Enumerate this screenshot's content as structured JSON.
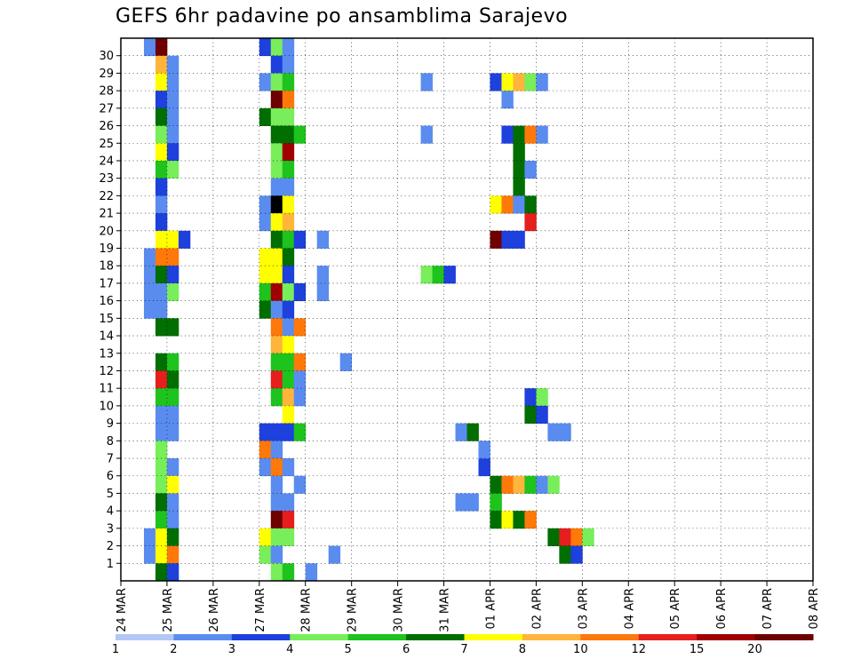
{
  "chart_data": {
    "type": "heatmap",
    "title": "GEFS 6hr padavine po ansamblima Sarajevo",
    "x_tick_labels": [
      "24 MAR",
      "25 MAR",
      "26 MAR",
      "27 MAR",
      "28 MAR",
      "29 MAR",
      "30 MAR",
      "31 MAR",
      "01 APR",
      "02 APR",
      "03 APR",
      "04 APR",
      "05 APR",
      "06 APR",
      "07 APR",
      "08 APR"
    ],
    "y_tick_labels": [
      "1",
      "2",
      "3",
      "4",
      "5",
      "6",
      "7",
      "8",
      "9",
      "10",
      "11",
      "12",
      "13",
      "14",
      "15",
      "16",
      "17",
      "18",
      "19",
      "20",
      "21",
      "22",
      "23",
      "24",
      "25",
      "26",
      "27",
      "28",
      "29",
      "30"
    ],
    "time_steps_per_day": 4,
    "ensemble_members": 30,
    "grid": true,
    "legend": {
      "position": "bottom",
      "labels": [
        "1",
        "2",
        "3",
        "4",
        "5",
        "6",
        "7",
        "8",
        "10",
        "12",
        "15",
        "20"
      ],
      "colors": [
        "#b4c8f5",
        "#5a8cf0",
        "#1e40dc",
        "#78ee5a",
        "#1ec31e",
        "#006e00",
        "#ffff00",
        "#ffb43c",
        "#ff780a",
        "#e61e1e",
        "#a00000",
        "#6e0000"
      ]
    },
    "cells": [
      [
        2,
        30,
        1
      ],
      [
        3,
        30,
        11
      ],
      [
        3,
        29,
        7
      ],
      [
        4,
        29,
        1
      ],
      [
        3,
        28,
        6
      ],
      [
        4,
        28,
        1
      ],
      [
        3,
        27,
        2
      ],
      [
        4,
        27,
        1
      ],
      [
        3,
        26,
        5
      ],
      [
        4,
        26,
        1
      ],
      [
        3,
        25,
        3
      ],
      [
        4,
        25,
        1
      ],
      [
        3,
        24,
        6
      ],
      [
        4,
        24,
        2
      ],
      [
        3,
        23,
        4
      ],
      [
        4,
        23,
        3
      ],
      [
        3,
        22,
        2
      ],
      [
        3,
        21,
        1
      ],
      [
        3,
        20,
        2
      ],
      [
        3,
        19,
        6
      ],
      [
        4,
        19,
        6
      ],
      [
        5,
        19,
        2
      ],
      [
        2,
        18,
        1
      ],
      [
        3,
        18,
        8
      ],
      [
        4,
        18,
        8
      ],
      [
        2,
        17,
        1
      ],
      [
        3,
        17,
        5
      ],
      [
        4,
        17,
        2
      ],
      [
        2,
        16,
        1
      ],
      [
        3,
        16,
        1
      ],
      [
        4,
        16,
        3
      ],
      [
        2,
        15,
        1
      ],
      [
        3,
        15,
        1
      ],
      [
        3,
        14,
        5
      ],
      [
        4,
        14,
        5
      ],
      [
        3,
        12,
        5
      ],
      [
        4,
        12,
        4
      ],
      [
        3,
        11,
        9
      ],
      [
        4,
        11,
        5
      ],
      [
        3,
        10,
        4
      ],
      [
        4,
        10,
        4
      ],
      [
        3,
        9,
        1
      ],
      [
        4,
        9,
        1
      ],
      [
        3,
        8,
        1
      ],
      [
        4,
        8,
        1
      ],
      [
        3,
        7,
        3
      ],
      [
        3,
        6,
        3
      ],
      [
        4,
        6,
        1
      ],
      [
        3,
        5,
        3
      ],
      [
        4,
        5,
        6
      ],
      [
        3,
        4,
        5
      ],
      [
        4,
        4,
        1
      ],
      [
        3,
        3,
        4
      ],
      [
        4,
        3,
        1
      ],
      [
        2,
        2,
        1
      ],
      [
        3,
        2,
        6
      ],
      [
        4,
        2,
        5
      ],
      [
        2,
        1,
        1
      ],
      [
        3,
        1,
        6
      ],
      [
        4,
        1,
        8
      ],
      [
        3,
        0,
        5
      ],
      [
        4,
        0,
        2
      ],
      [
        12,
        30,
        2
      ],
      [
        13,
        30,
        3
      ],
      [
        14,
        30,
        1
      ],
      [
        13,
        29,
        2
      ],
      [
        14,
        29,
        1
      ],
      [
        12,
        28,
        1
      ],
      [
        13,
        28,
        3
      ],
      [
        14,
        28,
        4
      ],
      [
        13,
        27,
        11
      ],
      [
        14,
        27,
        8
      ],
      [
        12,
        26,
        5
      ],
      [
        13,
        26,
        3
      ],
      [
        14,
        26,
        3
      ],
      [
        13,
        25,
        5
      ],
      [
        14,
        25,
        5
      ],
      [
        15,
        25,
        4
      ],
      [
        13,
        24,
        3
      ],
      [
        14,
        24,
        10
      ],
      [
        13,
        23,
        3
      ],
      [
        14,
        23,
        4
      ],
      [
        13,
        22,
        1
      ],
      [
        14,
        22,
        1
      ],
      [
        12,
        21,
        1
      ],
      [
        13,
        21,
        12
      ],
      [
        14,
        21,
        6
      ],
      [
        12,
        20,
        1
      ],
      [
        13,
        20,
        6
      ],
      [
        14,
        20,
        7
      ],
      [
        13,
        19,
        5
      ],
      [
        14,
        19,
        4
      ],
      [
        15,
        19,
        2
      ],
      [
        12,
        18,
        6
      ],
      [
        13,
        18,
        6
      ],
      [
        14,
        18,
        5
      ],
      [
        12,
        17,
        6
      ],
      [
        13,
        17,
        6
      ],
      [
        14,
        17,
        2
      ],
      [
        12,
        16,
        4
      ],
      [
        13,
        16,
        10
      ],
      [
        14,
        16,
        3
      ],
      [
        15,
        16,
        2
      ],
      [
        12,
        15,
        5
      ],
      [
        13,
        15,
        1
      ],
      [
        14,
        15,
        2
      ],
      [
        13,
        14,
        8
      ],
      [
        14,
        14,
        1
      ],
      [
        15,
        14,
        8
      ],
      [
        13,
        13,
        7
      ],
      [
        14,
        13,
        6
      ],
      [
        13,
        12,
        4
      ],
      [
        14,
        12,
        4
      ],
      [
        15,
        12,
        8
      ],
      [
        13,
        11,
        9
      ],
      [
        14,
        11,
        4
      ],
      [
        15,
        11,
        1
      ],
      [
        13,
        10,
        4
      ],
      [
        14,
        10,
        7
      ],
      [
        15,
        10,
        1
      ],
      [
        14,
        9,
        6
      ],
      [
        12,
        8,
        2
      ],
      [
        13,
        8,
        2
      ],
      [
        14,
        8,
        2
      ],
      [
        15,
        8,
        4
      ],
      [
        12,
        7,
        8
      ],
      [
        13,
        7,
        1
      ],
      [
        12,
        6,
        1
      ],
      [
        13,
        6,
        8
      ],
      [
        14,
        6,
        1
      ],
      [
        13,
        5,
        1
      ],
      [
        15,
        5,
        1
      ],
      [
        13,
        4,
        1
      ],
      [
        14,
        4,
        1
      ],
      [
        13,
        3,
        11
      ],
      [
        14,
        3,
        9
      ],
      [
        12,
        2,
        6
      ],
      [
        13,
        2,
        3
      ],
      [
        14,
        2,
        3
      ],
      [
        12,
        1,
        3
      ],
      [
        13,
        1,
        1
      ],
      [
        13,
        0,
        3
      ],
      [
        14,
        0,
        4
      ],
      [
        17,
        19,
        1
      ],
      [
        17,
        17,
        1
      ],
      [
        17,
        16,
        1
      ],
      [
        19,
        12,
        1
      ],
      [
        18,
        1,
        1
      ],
      [
        16,
        0,
        1
      ],
      [
        26,
        28,
        1
      ],
      [
        26,
        25,
        1
      ],
      [
        26,
        17,
        3
      ],
      [
        27,
        17,
        4
      ],
      [
        28,
        17,
        2
      ],
      [
        29,
        8,
        1
      ],
      [
        30,
        8,
        5
      ],
      [
        29,
        4,
        1
      ],
      [
        30,
        4,
        1
      ],
      [
        31,
        6,
        2
      ],
      [
        31,
        7,
        1
      ],
      [
        32,
        5,
        5
      ],
      [
        33,
        5,
        8
      ],
      [
        34,
        5,
        7
      ],
      [
        32,
        4,
        4
      ],
      [
        32,
        3,
        5
      ],
      [
        33,
        3,
        6
      ],
      [
        34,
        3,
        5
      ],
      [
        35,
        3,
        8
      ],
      [
        32,
        28,
        2
      ],
      [
        33,
        28,
        6
      ],
      [
        34,
        28,
        7
      ],
      [
        35,
        28,
        3
      ],
      [
        36,
        28,
        1
      ],
      [
        33,
        27,
        1
      ],
      [
        33,
        25,
        2
      ],
      [
        34,
        25,
        5
      ],
      [
        35,
        25,
        8
      ],
      [
        36,
        25,
        1
      ],
      [
        34,
        24,
        5
      ],
      [
        34,
        23,
        5
      ],
      [
        35,
        23,
        1
      ],
      [
        34,
        22,
        5
      ],
      [
        32,
        21,
        6
      ],
      [
        33,
        21,
        8
      ],
      [
        34,
        21,
        1
      ],
      [
        35,
        21,
        5
      ],
      [
        35,
        20,
        9
      ],
      [
        32,
        19,
        11
      ],
      [
        33,
        19,
        2
      ],
      [
        34,
        19,
        2
      ],
      [
        35,
        10,
        2
      ],
      [
        36,
        10,
        3
      ],
      [
        35,
        9,
        5
      ],
      [
        36,
        9,
        2
      ],
      [
        35,
        5,
        4
      ],
      [
        36,
        5,
        1
      ],
      [
        37,
        5,
        3
      ],
      [
        37,
        2,
        5
      ],
      [
        38,
        2,
        9
      ],
      [
        39,
        2,
        8
      ],
      [
        40,
        2,
        3
      ],
      [
        38,
        1,
        5
      ],
      [
        39,
        1,
        2
      ],
      [
        37,
        8,
        1
      ],
      [
        38,
        8,
        1
      ]
    ]
  }
}
